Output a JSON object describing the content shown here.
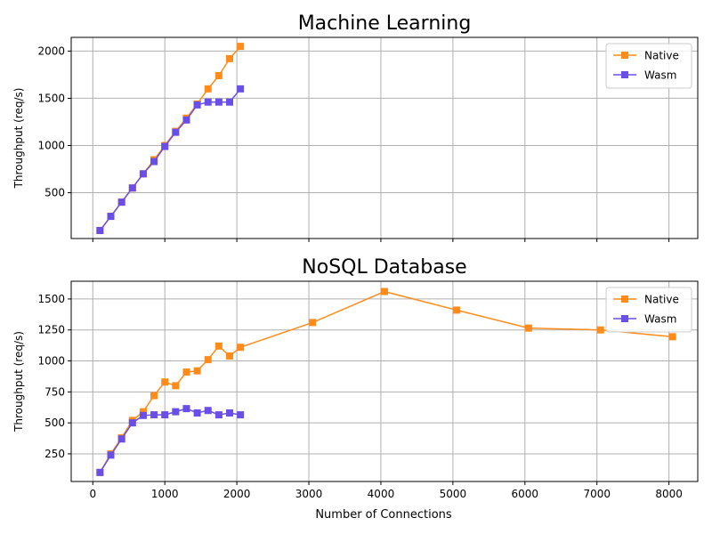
{
  "figure": {
    "xlabel": "Number of Connections",
    "x_ticks": [
      0,
      1000,
      2000,
      3000,
      4000,
      5000,
      6000,
      7000,
      8000
    ],
    "xlim": [
      -300,
      8400
    ]
  },
  "chart_data": [
    {
      "type": "line",
      "title": "Machine Learning",
      "ylabel": "Throughput (req/s)",
      "ylim": [
        15,
        2145
      ],
      "y_ticks": [
        500,
        1000,
        1500,
        2000
      ],
      "grid": true,
      "legend_position": "top-right",
      "series": [
        {
          "name": "Native",
          "color": "#ff8c1a",
          "marker": "square",
          "x": [
            100,
            250,
            400,
            550,
            700,
            850,
            1000,
            1150,
            1300,
            1450,
            1600,
            1750,
            1900,
            2050
          ],
          "y": [
            100,
            250,
            400,
            550,
            700,
            850,
            1000,
            1150,
            1290,
            1440,
            1600,
            1740,
            1920,
            2050
          ]
        },
        {
          "name": "Wasm",
          "color": "#6a4ee8",
          "marker": "square",
          "x": [
            100,
            250,
            400,
            550,
            700,
            850,
            1000,
            1150,
            1300,
            1450,
            1600,
            1750,
            1900,
            2050
          ],
          "y": [
            100,
            250,
            400,
            550,
            700,
            830,
            990,
            1140,
            1270,
            1430,
            1460,
            1460,
            1460,
            1600
          ]
        }
      ]
    },
    {
      "type": "line",
      "title": "NoSQL Database",
      "ylabel": "Throughput (req/s)",
      "ylim": [
        27,
        1643
      ],
      "y_ticks": [
        250,
        500,
        750,
        1000,
        1250,
        1500
      ],
      "grid": true,
      "legend_position": "top-right",
      "series": [
        {
          "name": "Native",
          "color": "#ff8c1a",
          "marker": "square",
          "x": [
            100,
            250,
            400,
            550,
            700,
            850,
            1000,
            1150,
            1300,
            1450,
            1600,
            1750,
            1900,
            2050,
            3050,
            4050,
            5050,
            6050,
            7050,
            8050
          ],
          "y": [
            100,
            250,
            380,
            520,
            590,
            720,
            830,
            800,
            910,
            920,
            1010,
            1120,
            1040,
            1110,
            1310,
            1560,
            1410,
            1265,
            1250,
            1195
          ]
        },
        {
          "name": "Wasm",
          "color": "#6a4ee8",
          "marker": "square",
          "x": [
            100,
            250,
            400,
            550,
            700,
            850,
            1000,
            1150,
            1300,
            1450,
            1600,
            1750,
            1900,
            2050
          ],
          "y": [
            100,
            240,
            370,
            500,
            560,
            565,
            565,
            590,
            615,
            580,
            600,
            565,
            580,
            565
          ]
        }
      ]
    }
  ]
}
